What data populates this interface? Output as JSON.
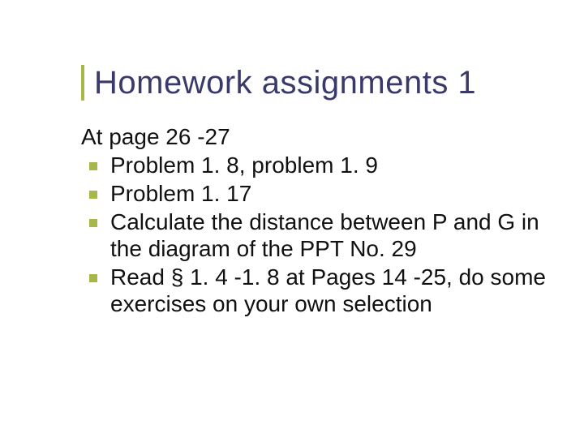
{
  "slide": {
    "title": "Homework assignments 1",
    "intro": "At page 26 -27",
    "bullets": [
      "Problem 1. 8, problem 1. 9",
      "Problem 1. 17",
      "Calculate the distance between P and G in the diagram of the PPT No. 29",
      "Read § 1. 4 -1. 8 at Pages 14 -25, do some exercises on your own selection"
    ]
  },
  "colors": {
    "title_color": "#3a3a6a",
    "accent_color": "#a6b84a",
    "body_text": "#111111",
    "background": "#ffffff"
  },
  "typography": {
    "title_fontsize": 40,
    "body_fontsize": 28,
    "font_family": "Verdana"
  }
}
